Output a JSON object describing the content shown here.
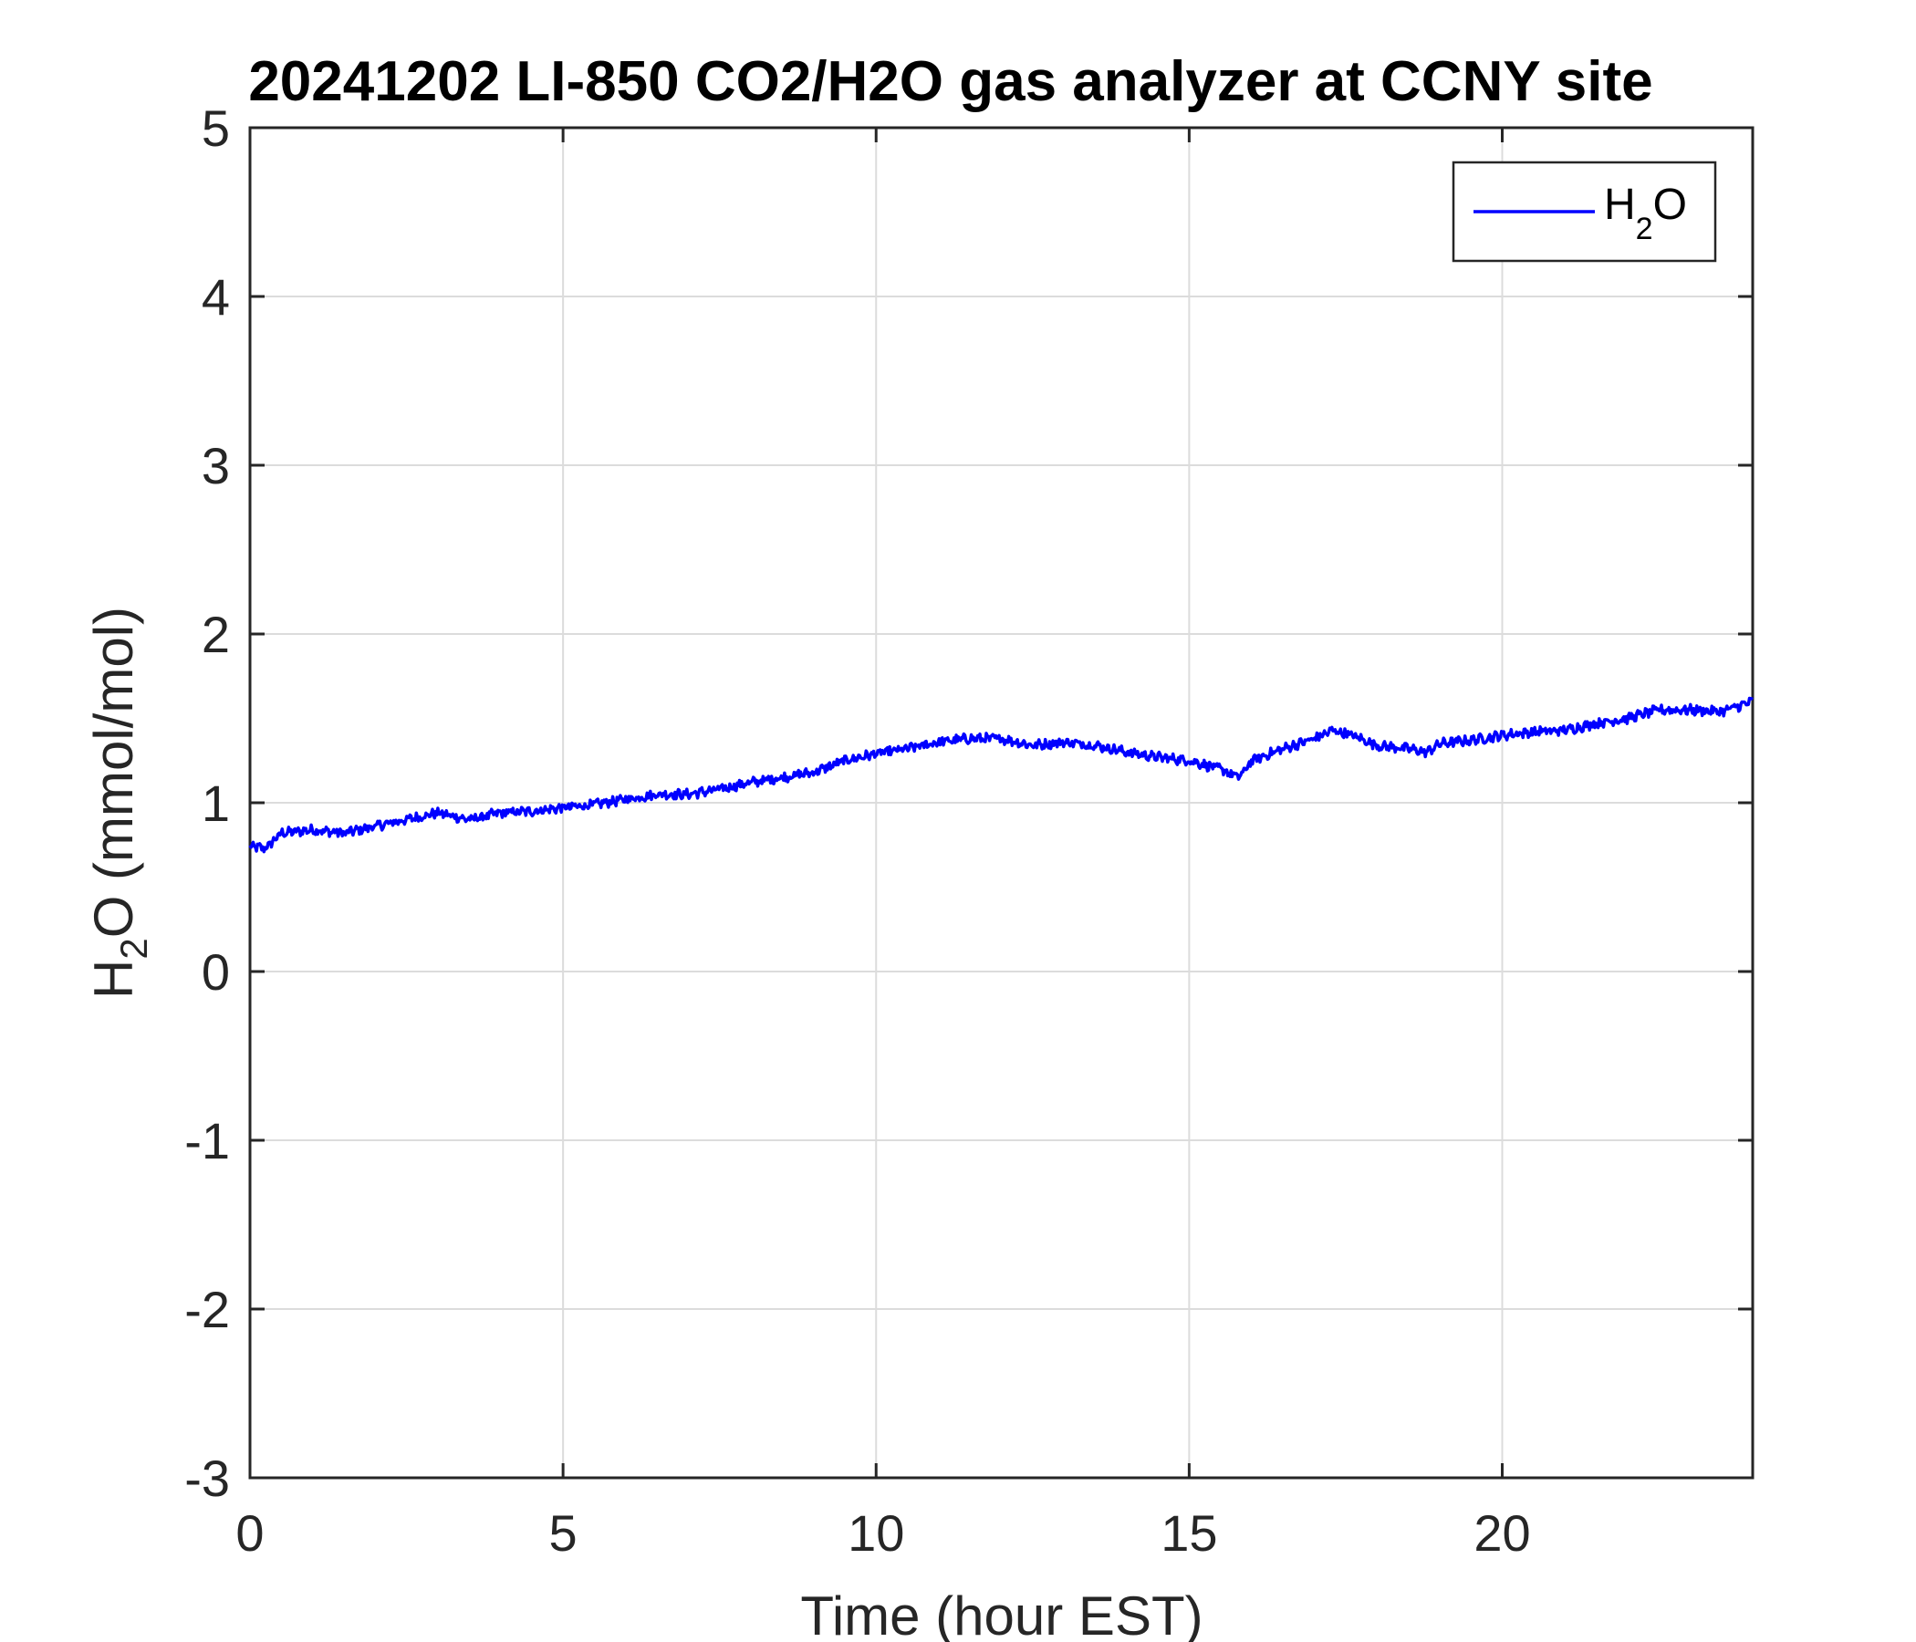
{
  "chart_data": {
    "type": "line",
    "title": "20241202 LI-850 CO2/H2O gas analyzer at CCNY site",
    "xlabel": "Time (hour EST)",
    "ylabel_main": "H",
    "ylabel_sub": "2",
    "ylabel_rest": "O (mmol/mol)",
    "xlim": [
      0,
      24
    ],
    "ylim": [
      -3,
      5
    ],
    "xticks": [
      0,
      5,
      10,
      15,
      20
    ],
    "yticks": [
      -3,
      -2,
      -1,
      0,
      1,
      2,
      3,
      4,
      5
    ],
    "grid": true,
    "legend_position": "top-right",
    "series": [
      {
        "name_main": "H",
        "name_sub": "2",
        "name_rest": "O",
        "color": "#0000ff",
        "x": [
          0,
          0.25,
          0.5,
          1,
          1.5,
          2,
          2.5,
          3,
          3.5,
          4,
          4.5,
          5,
          5.5,
          6,
          6.5,
          7,
          7.5,
          8,
          8.5,
          9,
          9.5,
          10,
          10.5,
          11,
          11.5,
          12,
          12.5,
          13,
          13.5,
          14,
          14.5,
          15,
          15.5,
          15.8,
          16,
          16.5,
          17,
          17.3,
          17.6,
          18,
          18.5,
          18.8,
          19,
          19.5,
          20,
          20.5,
          21,
          21.5,
          22,
          22.5,
          23,
          23.5,
          24
        ],
        "y": [
          0.74,
          0.73,
          0.82,
          0.84,
          0.82,
          0.86,
          0.9,
          0.94,
          0.9,
          0.94,
          0.95,
          0.97,
          0.99,
          1.02,
          1.05,
          1.05,
          1.08,
          1.12,
          1.15,
          1.18,
          1.25,
          1.29,
          1.32,
          1.36,
          1.38,
          1.38,
          1.34,
          1.36,
          1.34,
          1.3,
          1.27,
          1.25,
          1.2,
          1.15,
          1.25,
          1.32,
          1.38,
          1.43,
          1.4,
          1.34,
          1.32,
          1.3,
          1.35,
          1.37,
          1.4,
          1.42,
          1.43,
          1.47,
          1.5,
          1.55,
          1.55,
          1.54,
          1.6
        ]
      }
    ]
  }
}
